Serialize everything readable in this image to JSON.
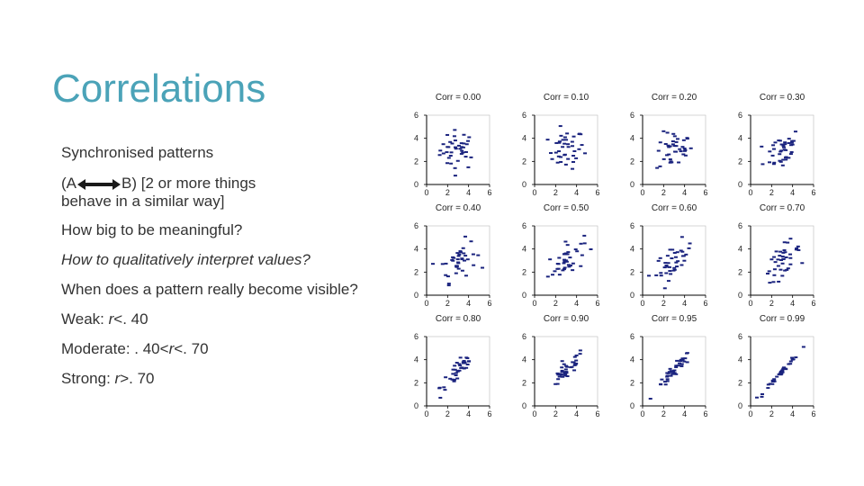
{
  "slide": {
    "title": "Correlations",
    "bullets": {
      "b1": "Synchronised patterns",
      "b2_prefix": "(A",
      "b2_mid": "B)  [2 or more things",
      "b2_line2": "behave in a similar way]",
      "b3": "How big to be meaningful?",
      "b4": "How to qualitatively interpret values?",
      "b5": "When does a pattern really become visible?",
      "b6_a": "Weak: ",
      "b6_r": "r",
      "b6_b": "<. 40",
      "b7_a": "Moderate: . 40<",
      "b7_r": "r",
      "b7_b": "<. 70",
      "b8_a": "Strong: ",
      "b8_r": "r",
      "b8_b": ">. 70"
    }
  },
  "colors": {
    "title": "#4BA3B8",
    "text": "#333333",
    "points": "#1a237e",
    "axis": "#000000"
  },
  "chart_data": [
    {
      "type": "scatter",
      "title": "Corr = 0.00",
      "correlation": 0.0,
      "xlim": [
        0,
        6
      ],
      "ylim": [
        0,
        6
      ],
      "xticks": [
        "0",
        "2",
        "4",
        "6"
      ],
      "yticks": [
        "0",
        "2",
        "4",
        "6"
      ],
      "n_points": 40
    },
    {
      "type": "scatter",
      "title": "Corr = 0.10",
      "correlation": 0.1,
      "xlim": [
        0,
        6
      ],
      "ylim": [
        0,
        6
      ],
      "xticks": [
        "0",
        "2",
        "4",
        "6"
      ],
      "yticks": [
        "0",
        "2",
        "4",
        "6"
      ],
      "n_points": 40
    },
    {
      "type": "scatter",
      "title": "Corr = 0.20",
      "correlation": 0.2,
      "xlim": [
        0,
        6
      ],
      "ylim": [
        0,
        6
      ],
      "xticks": [
        "0",
        "2",
        "4",
        "6"
      ],
      "yticks": [
        "0",
        "2",
        "4",
        "6"
      ],
      "n_points": 40
    },
    {
      "type": "scatter",
      "title": "Corr = 0.30",
      "correlation": 0.3,
      "xlim": [
        0,
        6
      ],
      "ylim": [
        0,
        6
      ],
      "xticks": [
        "0",
        "2",
        "4",
        "6"
      ],
      "yticks": [
        "0",
        "2",
        "4",
        "6"
      ],
      "n_points": 40
    },
    {
      "type": "scatter",
      "title": "Corr = 0.40",
      "correlation": 0.4,
      "xlim": [
        0,
        6
      ],
      "ylim": [
        0,
        6
      ],
      "xticks": [
        "0",
        "2",
        "4",
        "6"
      ],
      "yticks": [
        "0",
        "2",
        "4",
        "6"
      ],
      "n_points": 40
    },
    {
      "type": "scatter",
      "title": "Corr = 0.50",
      "correlation": 0.5,
      "xlim": [
        0,
        6
      ],
      "ylim": [
        0,
        6
      ],
      "xticks": [
        "0",
        "2",
        "4",
        "6"
      ],
      "yticks": [
        "0",
        "2",
        "4",
        "6"
      ],
      "n_points": 40
    },
    {
      "type": "scatter",
      "title": "Corr = 0.60",
      "correlation": 0.6,
      "xlim": [
        0,
        6
      ],
      "ylim": [
        0,
        6
      ],
      "xticks": [
        "0",
        "2",
        "4",
        "6"
      ],
      "yticks": [
        "0",
        "2",
        "4",
        "6"
      ],
      "n_points": 40
    },
    {
      "type": "scatter",
      "title": "Corr = 0.70",
      "correlation": 0.7,
      "xlim": [
        0,
        6
      ],
      "ylim": [
        0,
        6
      ],
      "xticks": [
        "0",
        "2",
        "4",
        "6"
      ],
      "yticks": [
        "0",
        "2",
        "4",
        "6"
      ],
      "n_points": 40
    },
    {
      "type": "scatter",
      "title": "Corr = 0.80",
      "correlation": 0.8,
      "xlim": [
        0,
        6
      ],
      "ylim": [
        0,
        6
      ],
      "xticks": [
        "0",
        "2",
        "4",
        "6"
      ],
      "yticks": [
        "0",
        "2",
        "4",
        "6"
      ],
      "n_points": 40
    },
    {
      "type": "scatter",
      "title": "Corr = 0.90",
      "correlation": 0.9,
      "xlim": [
        0,
        6
      ],
      "ylim": [
        0,
        6
      ],
      "xticks": [
        "0",
        "2",
        "4",
        "6"
      ],
      "yticks": [
        "0",
        "2",
        "4",
        "6"
      ],
      "n_points": 40
    },
    {
      "type": "scatter",
      "title": "Corr = 0.95",
      "correlation": 0.95,
      "xlim": [
        0,
        6
      ],
      "ylim": [
        0,
        6
      ],
      "xticks": [
        "0",
        "2",
        "4",
        "6"
      ],
      "yticks": [
        "0",
        "2",
        "4",
        "6"
      ],
      "n_points": 40
    },
    {
      "type": "scatter",
      "title": "Corr = 0.99",
      "correlation": 0.99,
      "xlim": [
        0,
        6
      ],
      "ylim": [
        0,
        6
      ],
      "xticks": [
        "0",
        "2",
        "4",
        "6"
      ],
      "yticks": [
        "0",
        "2",
        "4",
        "6"
      ],
      "n_points": 40
    }
  ]
}
